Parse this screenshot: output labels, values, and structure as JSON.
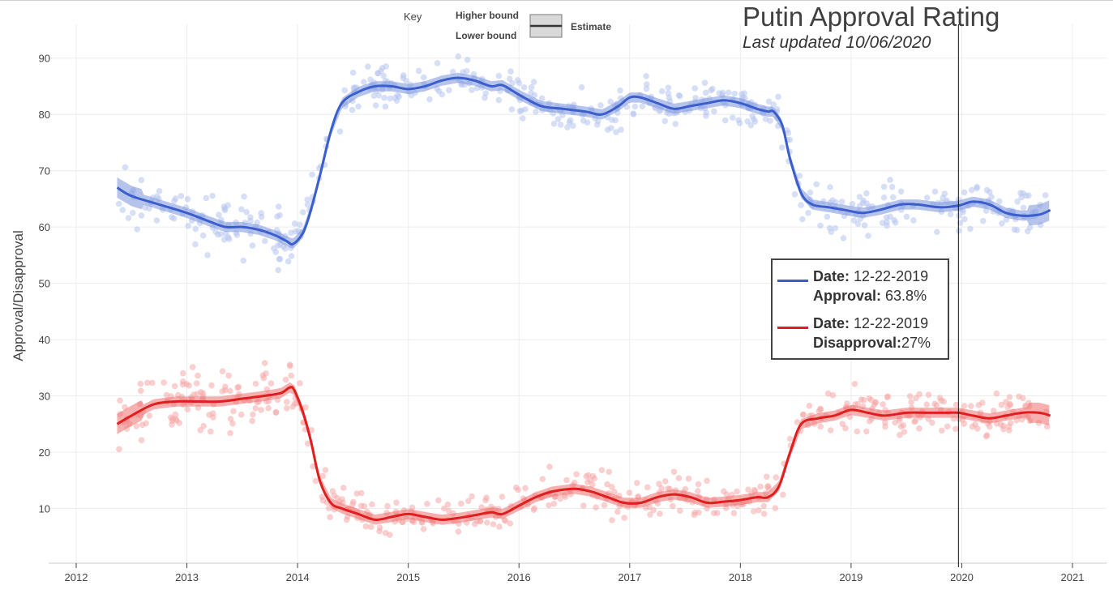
{
  "title": "Putin Approval Rating",
  "subtitle": "Last updated 10/06/2020",
  "key": {
    "label": "Key",
    "higher": "Higher bound",
    "lower": "Lower bound",
    "estimate": "Estimate"
  },
  "tooltip": {
    "approval": {
      "date_label": "Date:",
      "date": "12-22-2019",
      "value_label": "Approval:",
      "value": "63.8%"
    },
    "disapproval": {
      "date_label": "Date:",
      "date": "12-22-2019",
      "value_label": "Disapproval:",
      "value": "27%"
    }
  },
  "colors": {
    "approval": "#3a5fcd",
    "approval_band": "#7a93dd",
    "approval_points": "#b7c5ef",
    "disapproval": "#e01e1e",
    "disapproval_band": "#ee7070",
    "disapproval_points": "#f6a8a8"
  },
  "chart_data": {
    "type": "line",
    "ylabel": "Approval/Disapproval",
    "xlabel": "",
    "xlim": [
      2012,
      2021.3
    ],
    "ylim": [
      1,
      95
    ],
    "xticks": [
      2012,
      2013,
      2014,
      2015,
      2016,
      2017,
      2018,
      2019,
      2020,
      2021
    ],
    "yticks": [
      10,
      20,
      30,
      40,
      50,
      60,
      70,
      80,
      90
    ],
    "marker_x": 2019.97,
    "series": [
      {
        "key": "approval",
        "x": [
          2012.37,
          2012.5,
          2012.75,
          2013.0,
          2013.2,
          2013.35,
          2013.5,
          2013.65,
          2013.8,
          2013.9,
          2013.96,
          2014.05,
          2014.12,
          2014.2,
          2014.3,
          2014.4,
          2014.55,
          2014.7,
          2014.85,
          2015.0,
          2015.15,
          2015.3,
          2015.45,
          2015.6,
          2015.75,
          2015.85,
          2016.0,
          2016.2,
          2016.4,
          2016.6,
          2016.75,
          2016.9,
          2017.0,
          2017.1,
          2017.25,
          2017.4,
          2017.55,
          2017.7,
          2017.85,
          2018.0,
          2018.15,
          2018.25,
          2018.3,
          2018.38,
          2018.45,
          2018.55,
          2018.65,
          2018.8,
          2018.95,
          2019.1,
          2019.25,
          2019.45,
          2019.6,
          2019.8,
          2019.97,
          2020.1,
          2020.25,
          2020.4,
          2020.55,
          2020.7,
          2020.8
        ],
        "y": [
          67,
          65.5,
          64,
          62.5,
          61,
          60,
          60,
          59.5,
          58.5,
          57.5,
          57,
          59,
          63,
          69,
          77,
          82,
          84,
          85,
          85,
          84.5,
          85,
          86,
          86.5,
          86,
          85,
          85.2,
          83.5,
          81.5,
          81,
          80.5,
          80,
          81.5,
          83,
          83,
          82,
          81,
          81.5,
          82,
          82.5,
          82,
          81,
          80.5,
          80.5,
          78,
          72,
          66,
          64,
          63.5,
          63,
          62.5,
          63,
          64,
          64,
          63.5,
          63.8,
          64.5,
          64,
          62.5,
          62,
          62.2,
          63
        ]
      },
      {
        "key": "disapproval",
        "x": [
          2012.37,
          2012.5,
          2012.7,
          2012.9,
          2013.1,
          2013.3,
          2013.5,
          2013.7,
          2013.85,
          2013.93,
          2013.97,
          2014.05,
          2014.12,
          2014.2,
          2014.3,
          2014.4,
          2014.55,
          2014.7,
          2014.85,
          2015.0,
          2015.15,
          2015.3,
          2015.45,
          2015.6,
          2015.75,
          2015.85,
          2016.0,
          2016.15,
          2016.3,
          2016.5,
          2016.65,
          2016.8,
          2016.95,
          2017.1,
          2017.25,
          2017.4,
          2017.55,
          2017.7,
          2017.85,
          2018.0,
          2018.15,
          2018.25,
          2018.35,
          2018.45,
          2018.55,
          2018.7,
          2018.85,
          2019.0,
          2019.15,
          2019.3,
          2019.5,
          2019.7,
          2019.85,
          2019.97,
          2020.1,
          2020.25,
          2020.4,
          2020.55,
          2020.7,
          2020.8
        ],
        "y": [
          25,
          26.5,
          28.5,
          29,
          29,
          29,
          29.5,
          30,
          30.5,
          31.5,
          31,
          27,
          22,
          15,
          11,
          10,
          9,
          8,
          8.5,
          9,
          8.5,
          8,
          8.3,
          8.8,
          9.3,
          9,
          10.5,
          12,
          13,
          13.5,
          13,
          12,
          11,
          11,
          12,
          12.5,
          12,
          11,
          11.2,
          11.5,
          12,
          12,
          14,
          20,
          25,
          26,
          26.5,
          27.5,
          27,
          26.5,
          27,
          27,
          27,
          27,
          26.5,
          26,
          26.5,
          27,
          27,
          26.5
        ]
      }
    ]
  }
}
